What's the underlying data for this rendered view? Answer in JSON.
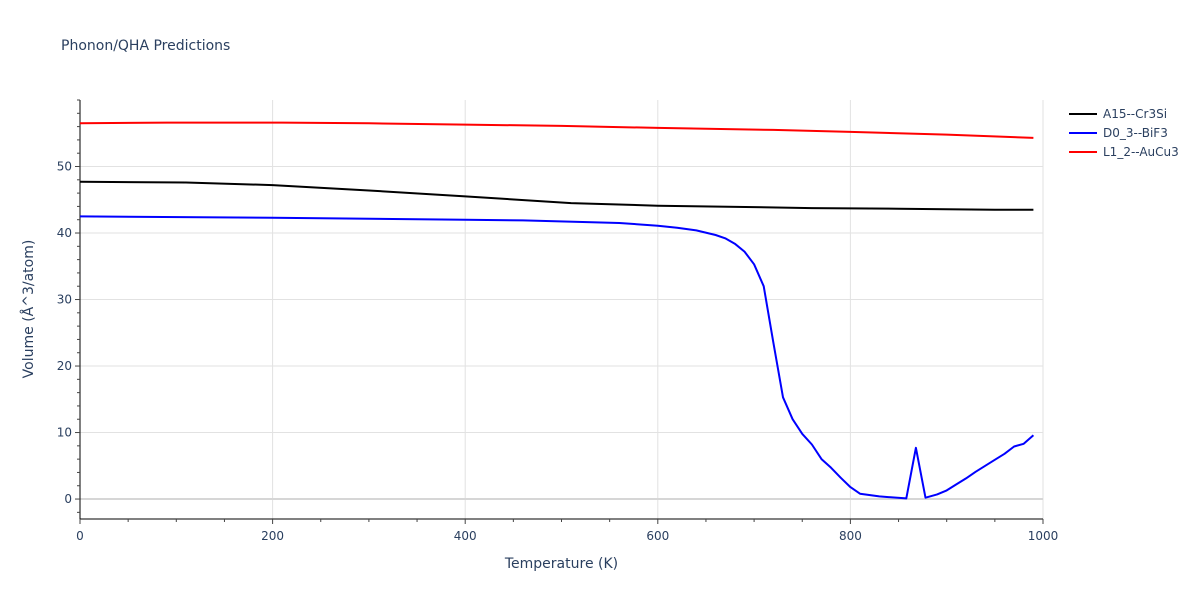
{
  "chart_data": {
    "type": "line",
    "title": "Phonon/QHA Predictions",
    "xlabel": "Temperature (K)",
    "ylabel": "Volume (Å^3/atom)",
    "xlim": [
      0,
      1000
    ],
    "ylim": [
      -3,
      60
    ],
    "xticks": [
      0,
      200,
      400,
      600,
      800,
      1000
    ],
    "yticks": [
      0,
      10,
      20,
      30,
      40,
      50
    ],
    "grid": true,
    "legend_position": "top-right",
    "series": [
      {
        "name": "A15--Cr3Si",
        "color": "#000000",
        "x": [
          0,
          110,
          200,
          300,
          400,
          510,
          600,
          700,
          760,
          850,
          950,
          990
        ],
        "y": [
          47.7,
          47.6,
          47.2,
          46.4,
          45.5,
          44.5,
          44.1,
          43.9,
          43.75,
          43.65,
          43.5,
          43.5
        ]
      },
      {
        "name": "D0_3--BiF3",
        "color": "#0000ff",
        "x": [
          0,
          200,
          400,
          460,
          560,
          600,
          620,
          640,
          660,
          670,
          680,
          690,
          700,
          710,
          720,
          730,
          740,
          750,
          760,
          770,
          780,
          790,
          800,
          810,
          830,
          858,
          868,
          878,
          890,
          900,
          910,
          920,
          930,
          940,
          950,
          960,
          970,
          980,
          990
        ],
        "y": [
          42.5,
          42.3,
          42.0,
          41.9,
          41.5,
          41.1,
          40.8,
          40.4,
          39.7,
          39.2,
          38.4,
          37.2,
          35.3,
          32.0,
          23.5,
          15.3,
          12.0,
          9.8,
          8.2,
          6.0,
          4.7,
          3.2,
          1.8,
          0.8,
          0.4,
          0.1,
          7.7,
          0.2,
          0.7,
          1.3,
          2.2,
          3.1,
          4.1,
          5.0,
          5.9,
          6.8,
          7.9,
          8.3,
          9.6
        ]
      },
      {
        "name": "L1_2--AuCu3",
        "color": "#ff0000",
        "x": [
          0,
          90,
          210,
          300,
          400,
          500,
          600,
          720,
          800,
          900,
          990
        ],
        "y": [
          56.5,
          56.6,
          56.6,
          56.5,
          56.3,
          56.1,
          55.8,
          55.5,
          55.2,
          54.8,
          54.3
        ]
      }
    ]
  }
}
